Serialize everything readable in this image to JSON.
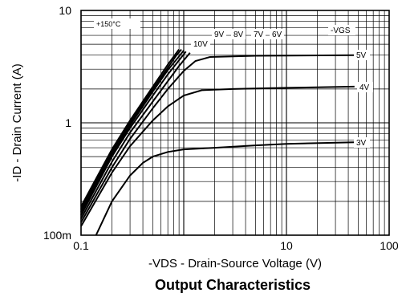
{
  "chart_data": {
    "type": "line",
    "title": "Output Characteristics",
    "xlabel": "-VDS - Drain-Source Voltage (V)",
    "ylabel": "-ID - Drain Current (A)",
    "x_scale": "log",
    "y_scale": "log",
    "xlim": [
      0.1,
      100
    ],
    "ylim": [
      0.1,
      10
    ],
    "x_ticks": [
      0.1,
      10,
      100
    ],
    "x_tick_labels": [
      "0.1",
      "10",
      "100"
    ],
    "y_ticks": [
      0.1,
      1,
      10
    ],
    "y_tick_labels": [
      "100m",
      "1",
      "10"
    ],
    "grid": true,
    "temperature_label": "+150°C",
    "parameter_label": "-VGS",
    "series": [
      {
        "name": "10V",
        "points": [
          [
            0.1,
            0.18
          ],
          [
            0.2,
            0.58
          ],
          [
            0.3,
            1.05
          ],
          [
            0.5,
            2.1
          ],
          [
            0.7,
            3.3
          ],
          [
            0.85,
            4.2
          ],
          [
            0.9,
            4.5
          ]
        ]
      },
      {
        "name": "9V",
        "points": [
          [
            0.1,
            0.17
          ],
          [
            0.2,
            0.55
          ],
          [
            0.3,
            1.0
          ],
          [
            0.5,
            2.0
          ],
          [
            0.7,
            3.1
          ],
          [
            0.85,
            4.0
          ],
          [
            0.95,
            4.5
          ]
        ]
      },
      {
        "name": "8V",
        "points": [
          [
            0.1,
            0.16
          ],
          [
            0.2,
            0.52
          ],
          [
            0.3,
            0.95
          ],
          [
            0.5,
            1.9
          ],
          [
            0.7,
            2.95
          ],
          [
            0.9,
            3.9
          ],
          [
            1.0,
            4.4
          ]
        ]
      },
      {
        "name": "7V",
        "points": [
          [
            0.1,
            0.15
          ],
          [
            0.2,
            0.5
          ],
          [
            0.3,
            0.9
          ],
          [
            0.5,
            1.75
          ],
          [
            0.7,
            2.7
          ],
          [
            0.9,
            3.6
          ],
          [
            1.05,
            4.3
          ]
        ]
      },
      {
        "name": "6V",
        "points": [
          [
            0.1,
            0.14
          ],
          [
            0.2,
            0.45
          ],
          [
            0.3,
            0.82
          ],
          [
            0.5,
            1.55
          ],
          [
            0.7,
            2.35
          ],
          [
            0.9,
            3.2
          ],
          [
            1.15,
            4.2
          ]
        ]
      },
      {
        "name": "5V",
        "points": [
          [
            0.1,
            0.13
          ],
          [
            0.2,
            0.4
          ],
          [
            0.3,
            0.72
          ],
          [
            0.5,
            1.35
          ],
          [
            0.7,
            2.0
          ],
          [
            1.0,
            2.9
          ],
          [
            1.3,
            3.55
          ],
          [
            1.8,
            3.85
          ],
          [
            3,
            3.9
          ],
          [
            5,
            3.95
          ],
          [
            46,
            4.0
          ]
        ]
      },
      {
        "name": "4V",
        "points": [
          [
            0.1,
            0.12
          ],
          [
            0.2,
            0.36
          ],
          [
            0.3,
            0.62
          ],
          [
            0.5,
            1.05
          ],
          [
            0.7,
            1.4
          ],
          [
            1.0,
            1.75
          ],
          [
            1.5,
            1.95
          ],
          [
            3,
            2.0
          ],
          [
            10,
            2.05
          ],
          [
            46,
            2.1
          ]
        ]
      },
      {
        "name": "3V",
        "points": [
          [
            0.14,
            0.1
          ],
          [
            0.2,
            0.2
          ],
          [
            0.3,
            0.34
          ],
          [
            0.4,
            0.44
          ],
          [
            0.5,
            0.5
          ],
          [
            0.7,
            0.55
          ],
          [
            1.0,
            0.58
          ],
          [
            2,
            0.6
          ],
          [
            5,
            0.63
          ],
          [
            10,
            0.65
          ],
          [
            46,
            0.67
          ]
        ]
      }
    ]
  }
}
